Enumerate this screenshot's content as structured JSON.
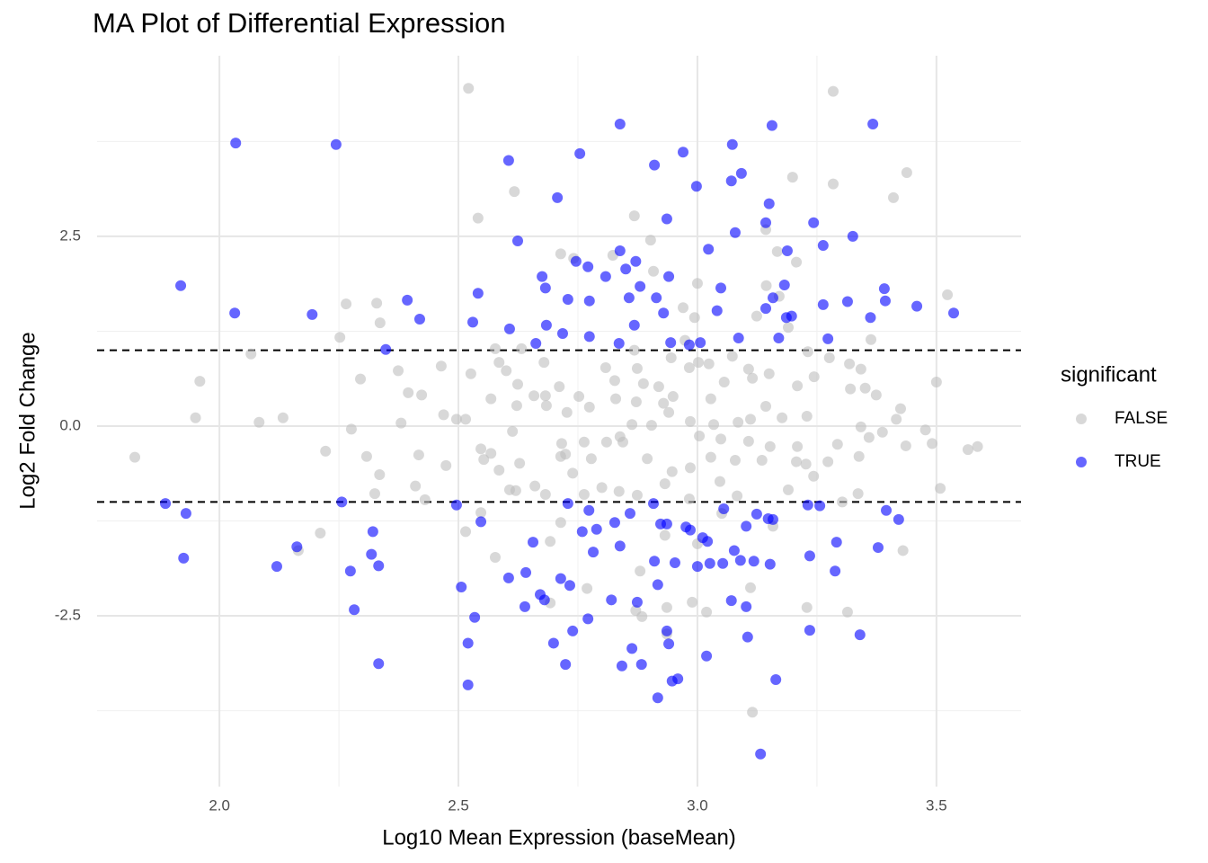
{
  "chart_data": {
    "type": "scatter",
    "title": "MA Plot of Differential Expression",
    "x_label": "Log10 Mean Expression (baseMean)",
    "y_label": "Log2 Fold Change",
    "legend_title": "significant",
    "legend_position": "right",
    "grid": true,
    "alpha": 0.6,
    "xlim": [
      1.744,
      3.677
    ],
    "ylim": [
      -4.75,
      4.88
    ],
    "xticks": [
      {
        "value": 2,
        "label": "2.0"
      },
      {
        "value": 2.5,
        "label": "2.5"
      },
      {
        "value": 3,
        "label": "3.0"
      },
      {
        "value": 3.5,
        "label": "3.5"
      }
    ],
    "yticks": [
      -2.5,
      {
        "value": 0,
        "label": "0.0"
      },
      2.5
    ],
    "xminor": [
      2.25,
      2.75,
      3.25
    ],
    "yminor": [
      -3.75,
      -1.25,
      1.25,
      3.75
    ],
    "hlines": [
      -1,
      1
    ],
    "series": [
      {
        "name": "FALSE",
        "color": "#bebebe",
        "x": [
          2.521,
          3.284,
          3.438,
          2.617,
          3.199,
          3.284,
          3.41,
          2.541,
          2.868,
          3.143,
          2.902,
          2.714,
          2.823,
          2.741,
          2.908,
          3.207,
          3.167,
          3.523,
          2.265,
          2.329,
          2.336,
          2.252,
          2.066,
          1.959,
          1.95,
          2.083,
          2.133,
          1.823,
          2.276,
          2.295,
          2.374,
          2.395,
          2.423,
          2.38,
          2.417,
          2.41,
          2.43,
          2.222,
          2.308,
          2.335,
          2.325,
          2.211,
          2.165,
          2.464,
          2.526,
          2.577,
          2.632,
          2.6,
          2.624,
          2.568,
          2.622,
          2.469,
          2.496,
          2.515,
          2.613,
          2.547,
          2.568,
          2.553,
          2.628,
          2.474,
          2.585,
          2.607,
          2.62,
          2.547,
          2.515,
          2.577,
          2.585,
          2.679,
          2.682,
          2.711,
          2.658,
          2.684,
          2.727,
          2.774,
          2.752,
          2.716,
          2.724,
          2.763,
          2.81,
          2.838,
          2.714,
          2.778,
          2.739,
          2.66,
          2.682,
          2.763,
          2.692,
          2.714,
          2.769,
          2.692,
          2.808,
          2.827,
          2.868,
          2.874,
          2.887,
          2.829,
          2.872,
          2.919,
          2.929,
          2.949,
          2.94,
          2.904,
          2.863,
          2.844,
          2.895,
          2.947,
          2.874,
          2.932,
          2.836,
          2.8,
          2.88,
          2.871,
          2.884,
          2.936,
          2.989,
          3.019,
          2.936,
          3.0,
          2.97,
          2.994,
          2.974,
          2.945,
          2.983,
          3.002,
          3.024,
          3.073,
          3.056,
          3.107,
          3.028,
          3.115,
          2.985,
          3.034,
          3.085,
          3.111,
          3.004,
          3.049,
          3.107,
          3.028,
          3.079,
          3.135,
          2.985,
          3.047,
          3.083,
          2.983,
          3.0,
          3.111,
          3.115,
          3.124,
          3.144,
          3.171,
          3.19,
          3.231,
          3.15,
          3.209,
          3.244,
          3.143,
          3.177,
          3.229,
          3.152,
          3.209,
          3.227,
          3.243,
          3.19,
          3.207,
          3.276,
          3.318,
          3.342,
          3.351,
          3.374,
          3.32,
          3.342,
          3.359,
          3.387,
          3.293,
          3.338,
          3.273,
          3.336,
          3.303,
          3.425,
          3.416,
          3.477,
          3.491,
          3.436,
          3.5,
          3.566,
          3.586,
          3.508,
          3.43,
          3.363,
          3.314,
          3.229,
          2.932,
          3.051,
          3.158
        ],
        "y": [
          4.45,
          4.41,
          3.34,
          3.09,
          3.28,
          3.19,
          3.01,
          2.74,
          2.77,
          2.59,
          2.45,
          2.27,
          2.25,
          2.21,
          2.04,
          2.16,
          2.3,
          1.73,
          1.61,
          1.62,
          1.36,
          1.17,
          0.95,
          0.59,
          0.11,
          0.05,
          0.11,
          -0.41,
          -0.04,
          0.62,
          0.73,
          0.44,
          0.41,
          0.04,
          -0.38,
          -0.79,
          -0.97,
          -0.33,
          -0.4,
          -0.64,
          -0.89,
          -1.41,
          -1.64,
          0.79,
          0.69,
          1.02,
          1.02,
          0.73,
          0.55,
          0.36,
          0.27,
          0.15,
          0.09,
          0.09,
          -0.07,
          -0.3,
          -0.36,
          -0.44,
          -0.49,
          -0.52,
          -0.58,
          -0.84,
          -0.85,
          -1.14,
          -1.39,
          -1.73,
          0.84,
          0.84,
          0.4,
          0.52,
          0.4,
          0.27,
          0.18,
          0.25,
          0.39,
          -0.23,
          -0.37,
          -0.21,
          -0.21,
          -0.14,
          -0.4,
          -0.43,
          -0.62,
          -0.79,
          -0.9,
          -0.9,
          -1.52,
          -1.27,
          -2.14,
          -2.33,
          0.77,
          0.6,
          1.0,
          0.76,
          0.56,
          0.36,
          0.32,
          0.52,
          0.3,
          0.39,
          0.18,
          0.01,
          0.02,
          -0.21,
          -0.43,
          -0.6,
          -0.91,
          -0.76,
          -0.86,
          -0.81,
          -1.91,
          -2.43,
          -2.51,
          -2.39,
          -2.32,
          -2.45,
          -2.74,
          1.88,
          1.56,
          1.43,
          1.13,
          0.9,
          0.77,
          0.84,
          0.82,
          0.92,
          0.58,
          0.75,
          0.36,
          0.63,
          0.06,
          0.02,
          0.05,
          0.09,
          -0.13,
          -0.17,
          -0.2,
          -0.41,
          -0.45,
          -0.45,
          -0.55,
          -0.73,
          -0.92,
          -0.96,
          -1.55,
          -2.13,
          -3.77,
          1.45,
          1.85,
          1.71,
          1.3,
          0.98,
          0.69,
          0.53,
          0.65,
          0.26,
          0.11,
          0.13,
          -0.27,
          -0.27,
          -0.5,
          -0.66,
          -0.84,
          -0.47,
          0.9,
          0.82,
          0.75,
          0.5,
          0.41,
          0.49,
          -0.01,
          -0.15,
          -0.08,
          -0.24,
          -0.4,
          -0.47,
          -0.89,
          -1.0,
          0.23,
          0.09,
          -0.05,
          -0.23,
          -0.26,
          0.58,
          -0.31,
          -0.27,
          -0.82,
          -1.64,
          1.14,
          -2.45,
          -2.39,
          -1.44,
          -1.15,
          -1.32
        ]
      },
      {
        "name": "TRUE",
        "color": "#0000ff",
        "x": [
          2.034,
          2.244,
          1.919,
          2.032,
          2.194,
          2.393,
          2.419,
          2.348,
          1.887,
          1.93,
          1.925,
          2.12,
          2.162,
          2.256,
          2.274,
          2.282,
          2.321,
          2.318,
          2.333,
          2.333,
          2.838,
          3.156,
          3.367,
          2.605,
          2.754,
          2.91,
          2.97,
          3.073,
          3.092,
          3.071,
          2.998,
          2.707,
          2.624,
          2.936,
          2.838,
          3.079,
          3.15,
          3.143,
          3.243,
          3.325,
          3.263,
          3.023,
          3.188,
          2.746,
          2.771,
          2.85,
          2.871,
          2.675,
          2.808,
          2.88,
          2.94,
          2.682,
          2.541,
          2.729,
          2.774,
          2.857,
          2.914,
          3.049,
          3.182,
          3.158,
          3.143,
          3.263,
          3.314,
          3.391,
          3.393,
          3.459,
          3.536,
          3.362,
          2.53,
          2.607,
          2.684,
          2.718,
          2.774,
          2.929,
          2.868,
          3.041,
          3.186,
          3.197,
          3.086,
          3.17,
          3.273,
          2.662,
          2.836,
          2.944,
          2.983,
          3.006,
          2.496,
          2.547,
          2.656,
          2.729,
          2.773,
          2.827,
          2.859,
          2.908,
          2.923,
          2.936,
          2.976,
          2.985,
          3.011,
          3.021,
          3.055,
          3.102,
          3.124,
          3.148,
          3.158,
          3.231,
          3.256,
          3.395,
          3.421,
          3.291,
          3.378,
          2.759,
          2.789,
          2.838,
          2.782,
          2.91,
          2.953,
          3.0,
          3.026,
          3.053,
          3.077,
          3.09,
          3.118,
          3.152,
          3.235,
          3.288,
          2.605,
          2.641,
          2.714,
          2.733,
          2.917,
          2.506,
          2.671,
          2.68,
          2.639,
          2.82,
          2.874,
          2.771,
          3.071,
          3.102,
          2.534,
          2.52,
          2.699,
          2.739,
          2.863,
          2.936,
          2.94,
          3.105,
          3.235,
          3.34,
          2.724,
          2.842,
          2.883,
          3.019,
          2.959,
          2.947,
          2.52,
          2.917,
          3.164,
          3.132
        ],
        "y": [
          3.73,
          3.71,
          1.85,
          1.49,
          1.47,
          1.66,
          1.41,
          1.01,
          -1.02,
          -1.15,
          -1.74,
          -1.85,
          -1.59,
          -1.0,
          -1.91,
          -2.42,
          -1.39,
          -1.69,
          -1.84,
          -3.13,
          3.98,
          3.96,
          3.98,
          3.5,
          3.59,
          3.44,
          3.61,
          3.71,
          3.33,
          3.23,
          3.16,
          3.01,
          2.44,
          2.73,
          2.31,
          2.55,
          2.93,
          2.68,
          2.68,
          2.5,
          2.38,
          2.33,
          2.31,
          2.17,
          2.1,
          2.07,
          2.17,
          1.97,
          1.97,
          1.84,
          1.97,
          1.82,
          1.75,
          1.67,
          1.65,
          1.69,
          1.69,
          1.82,
          1.86,
          1.69,
          1.55,
          1.6,
          1.64,
          1.81,
          1.65,
          1.58,
          1.49,
          1.43,
          1.37,
          1.28,
          1.33,
          1.22,
          1.18,
          1.49,
          1.33,
          1.52,
          1.43,
          1.45,
          1.16,
          1.16,
          1.15,
          1.09,
          1.09,
          1.1,
          1.07,
          1.1,
          -1.04,
          -1.26,
          -1.53,
          -1.02,
          -1.11,
          -1.27,
          -1.15,
          -1.02,
          -1.29,
          -1.29,
          -1.33,
          -1.37,
          -1.47,
          -1.52,
          -1.09,
          -1.32,
          -1.16,
          -1.22,
          -1.23,
          -1.04,
          -1.05,
          -1.11,
          -1.23,
          -1.53,
          -1.6,
          -1.39,
          -1.36,
          -1.58,
          -1.66,
          -1.78,
          -1.8,
          -1.85,
          -1.81,
          -1.81,
          -1.64,
          -1.77,
          -1.78,
          -1.82,
          -1.71,
          -1.91,
          -2.0,
          -1.93,
          -2.01,
          -2.1,
          -2.09,
          -2.12,
          -2.22,
          -2.29,
          -2.38,
          -2.29,
          -2.32,
          -2.54,
          -2.3,
          -2.38,
          -2.52,
          -2.86,
          -2.86,
          -2.7,
          -2.93,
          -2.7,
          -2.87,
          -2.78,
          -2.69,
          -2.75,
          -3.14,
          -3.16,
          -3.14,
          -3.03,
          -3.33,
          -3.36,
          -3.41,
          -3.58,
          -3.34,
          -4.32
        ]
      }
    ]
  }
}
